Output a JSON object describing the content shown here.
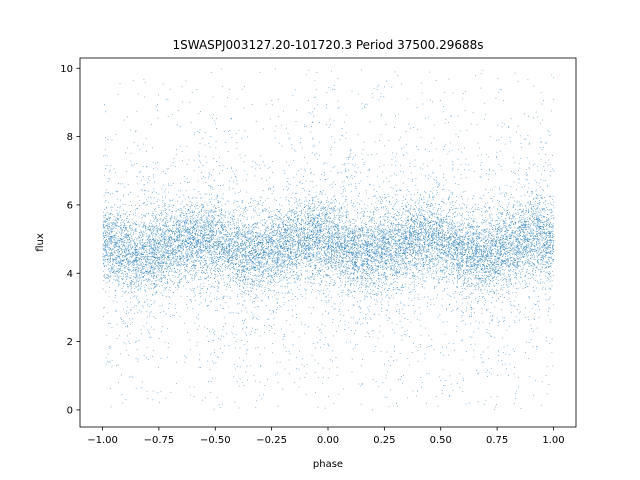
{
  "chart_data": {
    "type": "scatter",
    "title": "1SWASPJ003127.20-101720.3 Period 37500.29688s",
    "xlabel": "phase",
    "ylabel": "flux",
    "xlim": [
      -1.1,
      1.1
    ],
    "ylim": [
      -0.5,
      10.3
    ],
    "x_ticks": [
      -1.0,
      -0.75,
      -0.5,
      -0.25,
      0.0,
      0.25,
      0.5,
      0.75,
      1.0
    ],
    "x_tick_labels": [
      "−1.00",
      "−0.75",
      "−0.50",
      "−0.25",
      "0.00",
      "0.25",
      "0.50",
      "0.75",
      "1.00"
    ],
    "y_ticks": [
      0,
      2,
      4,
      6,
      8,
      10
    ],
    "y_tick_labels": [
      "0",
      "2",
      "4",
      "6",
      "8",
      "10"
    ],
    "x_range": [
      -1.0,
      1.0
    ],
    "y_range": [
      0.0,
      10.0
    ],
    "median_flux": 4.8,
    "modulation_amplitude": 0.25,
    "cycles_in_phase_range": 4,
    "grid": false,
    "marker_color": "#1f77b4"
  }
}
